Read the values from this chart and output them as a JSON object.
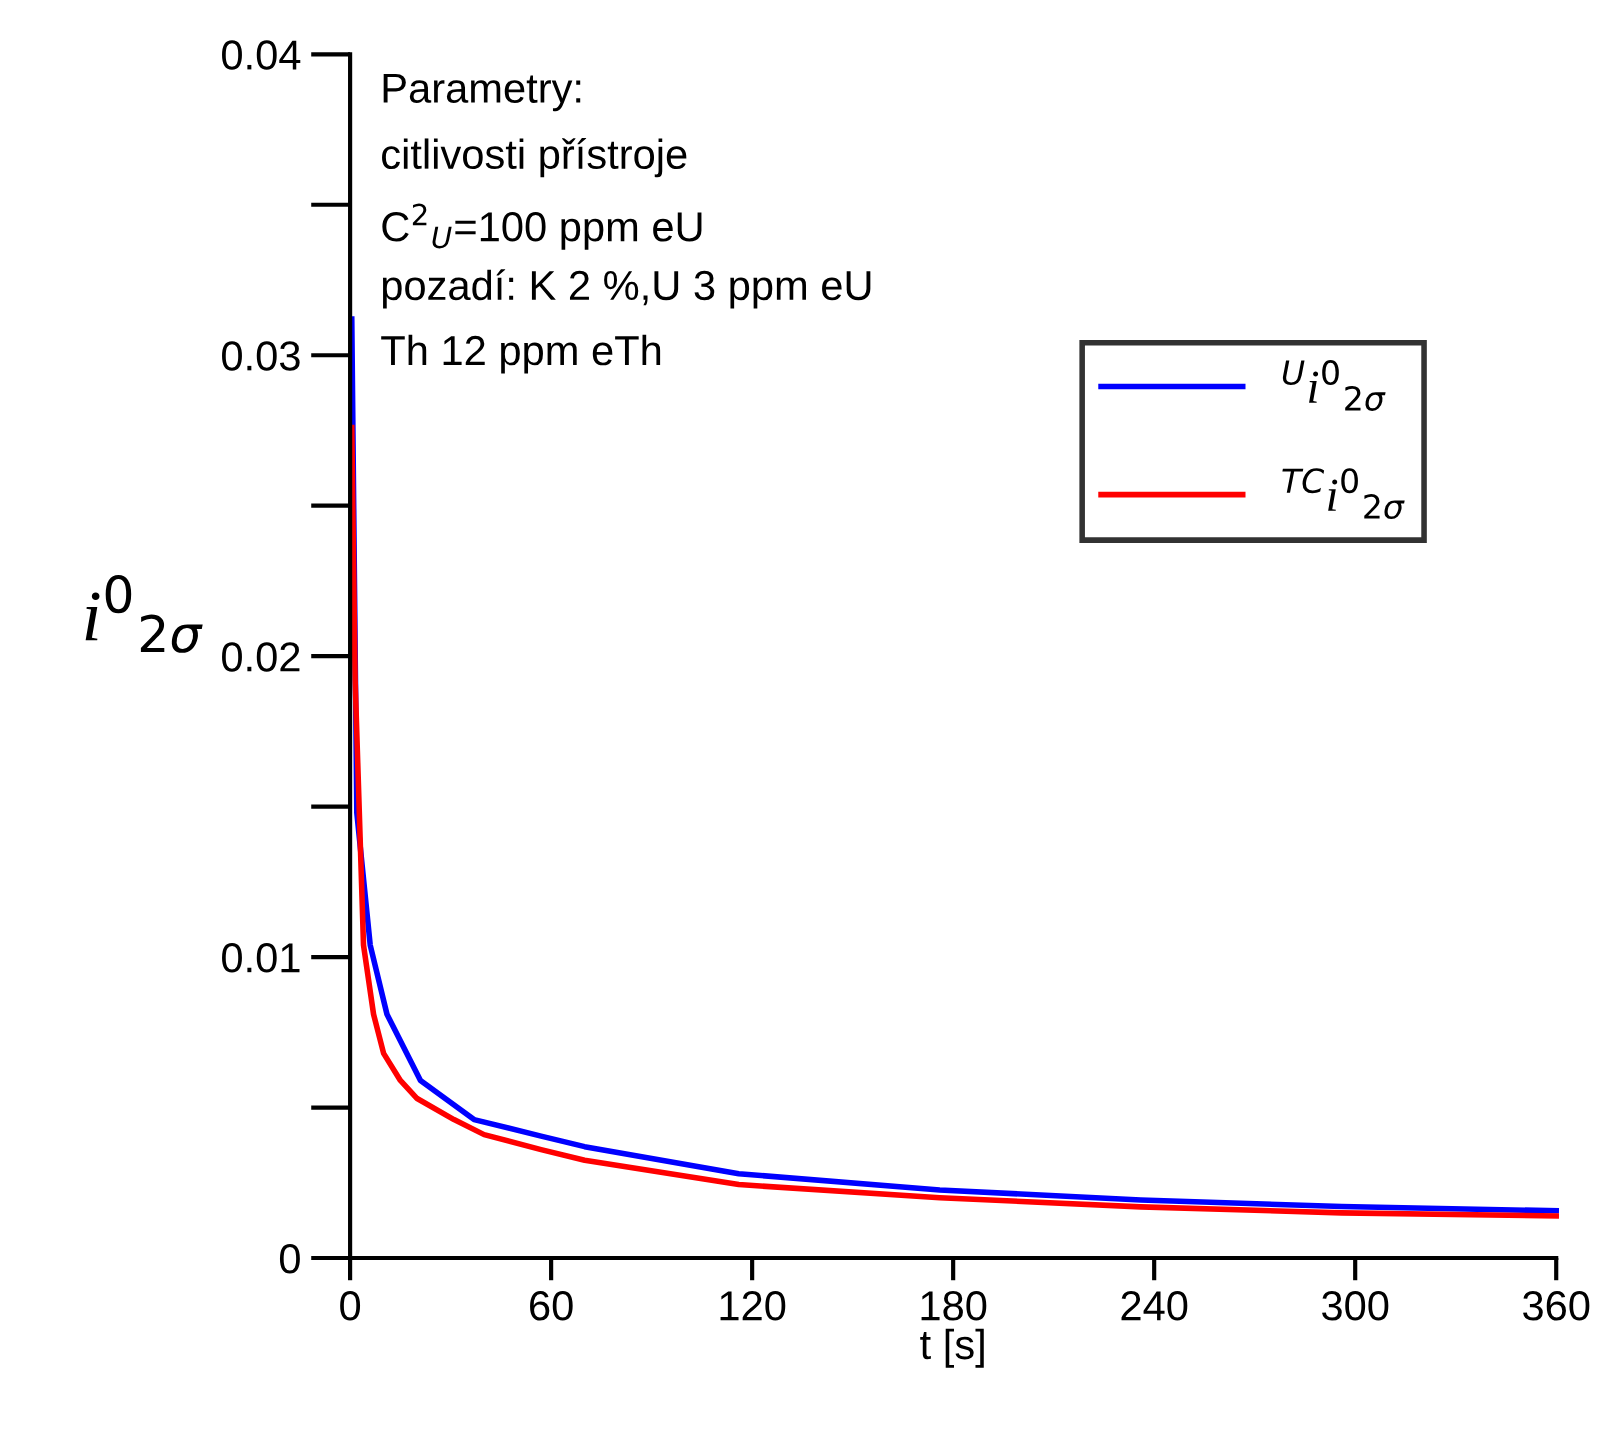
{
  "chart_data": {
    "type": "line",
    "xlabel": "t [s]",
    "ylabel": "i$^{0}$$_{2σ}$",
    "xlim": [
      0,
      360
    ],
    "xticks": [
      0,
      60,
      120,
      180,
      240,
      300,
      360
    ],
    "ylim": [
      0,
      0.04
    ],
    "yticks": [
      {
        "value": 0,
        "label": "0"
      },
      0.01,
      0.02,
      0.03,
      0.04
    ],
    "grid": false,
    "legend": "top right",
    "marker": "none",
    "line_style": "solid",
    "annotations": [
      "Parametry:",
      "citlivosti přístroje",
      "C$^{2}$$_{U}$=100 ppm eU",
      "pozadí: K 2 %,U 3 ppm eU",
      "Th 12 ppm eTh"
    ],
    "series": [
      {
        "name": "$^{U}$i$^{0}$$_{2σ}$",
        "color": "#0000ff",
        "x": [
          0.5,
          2,
          6,
          11,
          21,
          37,
          57,
          70,
          116,
          176,
          236,
          296,
          360
        ],
        "values": [
          0.0312,
          0.0148,
          0.0104,
          0.0081,
          0.0059,
          0.0046,
          0.00405,
          0.0037,
          0.0028,
          0.00226,
          0.00193,
          0.00171,
          0.00157
        ]
      },
      {
        "name": "$^{TC}$i$^{0}$$_{2σ}$",
        "color": "#ff0000",
        "x": [
          0.5,
          1.5,
          4,
          7,
          10,
          15,
          20,
          31,
          40,
          57,
          70,
          116,
          176,
          236,
          296,
          360
        ],
        "values": [
          0.0276,
          0.0192,
          0.0104,
          0.0081,
          0.0068,
          0.0059,
          0.0053,
          0.0046,
          0.0041,
          0.0036,
          0.00325,
          0.00244,
          0.002,
          0.0017,
          0.0015,
          0.0014
        ]
      }
    ]
  }
}
